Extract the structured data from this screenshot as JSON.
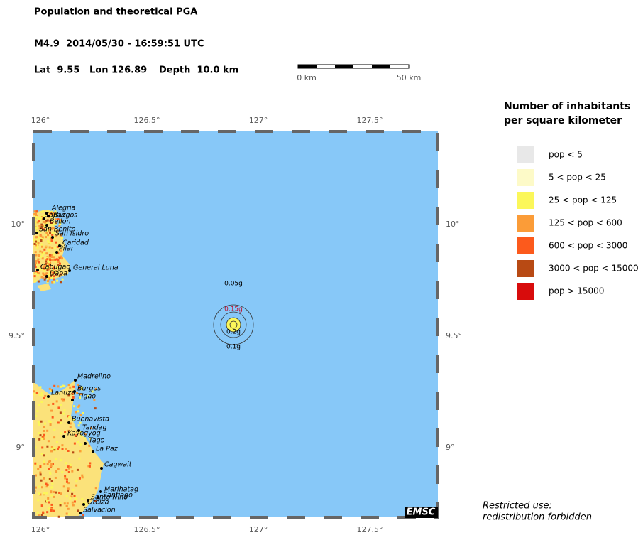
{
  "header": {
    "title": "Population and theoretical PGA",
    "event": "M4.9  2014/05/30 - 16:59:51 UTC",
    "lat": "Lat  9.55",
    "lon": "Lon 126.89",
    "depth": "Depth  10.0 km"
  },
  "scale_bar": {
    "start": "0 km",
    "end": "50 km"
  },
  "map": {
    "lon_ticks": [
      {
        "value": 126,
        "label": "126°"
      },
      {
        "value": 126.5,
        "label": "126.5°"
      },
      {
        "value": 127,
        "label": "127°"
      },
      {
        "value": 127.5,
        "label": "127.5°"
      }
    ],
    "lat_ticks": [
      {
        "value": 10,
        "label": "10°"
      },
      {
        "value": 9.5,
        "label": "9.5°"
      },
      {
        "value": 9,
        "label": "9°"
      }
    ],
    "contours": [
      "0.05g",
      "0.15g",
      "0.2g",
      "0.1g"
    ],
    "cities": [
      "Alegria",
      "Sapao",
      "Burgos",
      "Bellon",
      "San Benito",
      "San Isidro",
      "Caridad",
      "Pilar",
      "Cabugao",
      "General Luna",
      "Dapa",
      "Madrelino",
      "Burgos",
      "Lanuza",
      "Tigao",
      "Buenavista",
      "Tandag",
      "Kayogyog",
      "Tago",
      "La Paz",
      "Cagwait",
      "Marihatag",
      "Santiago",
      "Santo Nino",
      "Otelza",
      "Salvacion"
    ],
    "logo": "EMSC"
  },
  "legend": {
    "title": [
      "Number of inhabitants",
      "per square kilometer"
    ],
    "items": [
      {
        "label": "pop < 5",
        "color": "#e8e8e8"
      },
      {
        "label": "5 < pop < 25",
        "color": "#fdfac8"
      },
      {
        "label": "25 < pop < 125",
        "color": "#fbf75a"
      },
      {
        "label": "125 < pop < 600",
        "color": "#fb9c38"
      },
      {
        "label": "600 < pop < 3000",
        "color": "#fc5a1c"
      },
      {
        "label": "3000 < pop < 15000",
        "color": "#b84a14"
      },
      {
        "label": "pop > 15000",
        "color": "#d80c0c"
      }
    ]
  },
  "footer": [
    "Restricted use:",
    "redistribution forbidden"
  ]
}
